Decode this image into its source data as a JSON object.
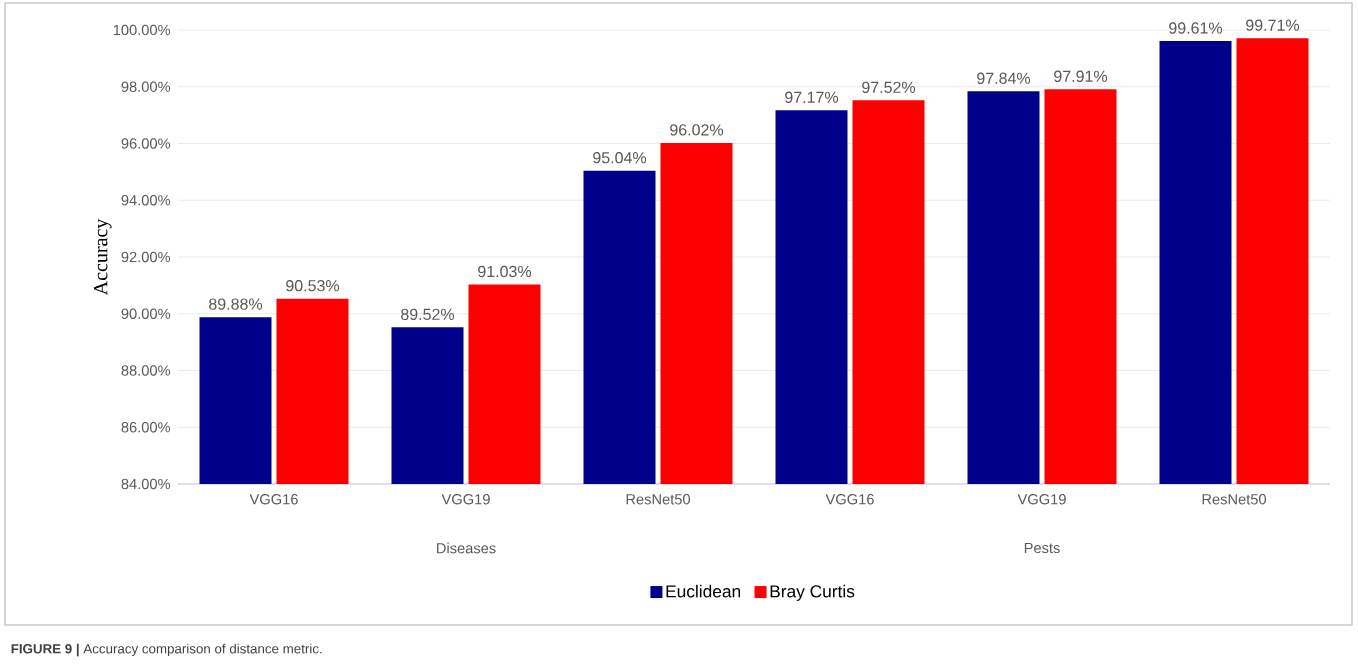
{
  "chart_data": {
    "type": "bar",
    "ylabel": "Accuracy",
    "categories": [
      "VGG16",
      "VGG19",
      "ResNet50",
      "VGG16",
      "VGG19",
      "ResNet50"
    ],
    "series": [
      {
        "name": "Euclidean",
        "color": "#00008b",
        "values": [
          89.88,
          89.52,
          95.04,
          97.17,
          97.84,
          99.61
        ],
        "value_labels": [
          "89.88%",
          "89.52%",
          "95.04%",
          "97.17%",
          "97.84%",
          "99.61%"
        ]
      },
      {
        "name": "Bray Curtis",
        "color": "#ff0000",
        "values": [
          90.53,
          91.03,
          96.02,
          97.52,
          97.91,
          99.71
        ],
        "value_labels": [
          "90.53%",
          "91.03%",
          "96.02%",
          "97.52%",
          "97.91%",
          "99.71%"
        ]
      }
    ],
    "ylim": [
      84,
      100
    ],
    "yticks": [
      {
        "value": 84,
        "label": "84.00%"
      },
      {
        "value": 86,
        "label": "86.00%"
      },
      {
        "value": 88,
        "label": "88.00%"
      },
      {
        "value": 90,
        "label": "90.00%"
      },
      {
        "value": 92,
        "label": "92.00%"
      },
      {
        "value": 94,
        "label": "94.00%"
      },
      {
        "value": 96,
        "label": "96.00%"
      },
      {
        "value": 98,
        "label": "98.00%"
      },
      {
        "value": 100,
        "label": "100.00%"
      }
    ],
    "grid": "y",
    "legend": "bottom",
    "annotations": [
      "Diseases",
      "Pests",
      "**FIGURE 9 |** Accuracy comparison of distance metric."
    ]
  }
}
